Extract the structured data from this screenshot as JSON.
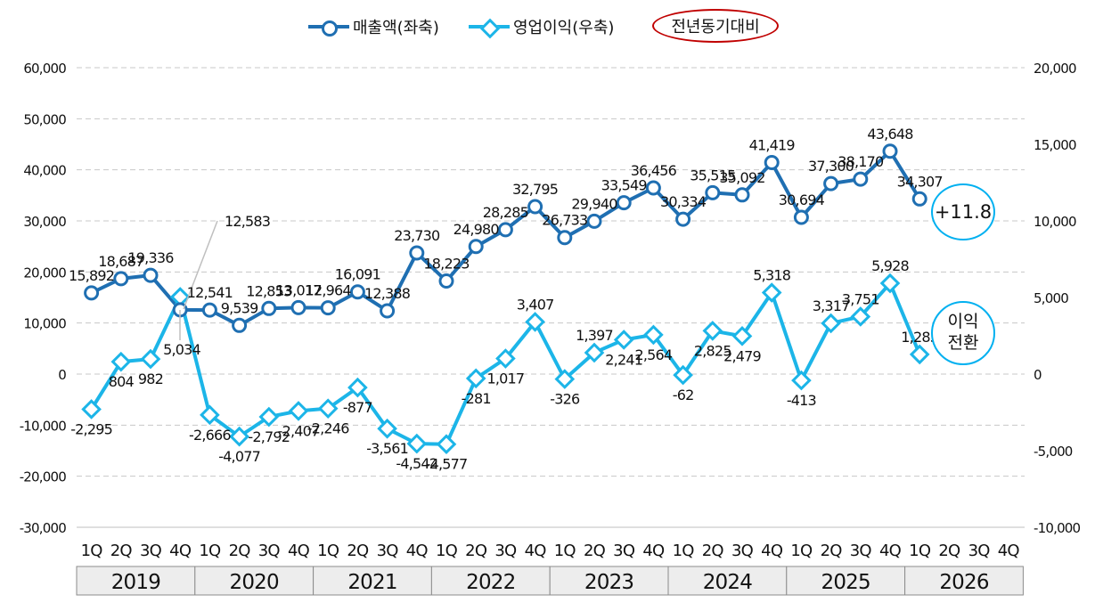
{
  "legend": {
    "sales_label": "매출액(좌축)",
    "op_label": "영업이익(우축)",
    "yoy_label": "전년동기대비"
  },
  "colors": {
    "sales": "#1f6fb2",
    "op_profit": "#1cb5e8",
    "circle_border": "#00b0f0",
    "ellipse_border": "#c00000"
  },
  "badges": {
    "sales_change": "+11.8",
    "op_change_line1": "이익",
    "op_change_line2": "전환"
  },
  "chart_data": {
    "type": "line",
    "x_quarters": [
      "1Q",
      "2Q",
      "3Q",
      "4Q",
      "1Q",
      "2Q",
      "3Q",
      "4Q",
      "1Q",
      "2Q",
      "3Q",
      "4Q",
      "1Q",
      "2Q",
      "3Q",
      "4Q",
      "1Q",
      "2Q",
      "3Q",
      "4Q",
      "1Q",
      "2Q",
      "3Q",
      "4Q",
      "1Q",
      "2Q",
      "3Q",
      "4Q",
      "1Q",
      "2Q",
      "3Q",
      "4Q"
    ],
    "years": [
      "2019",
      "2020",
      "2021",
      "2022",
      "2023",
      "2024",
      "2025",
      "2026"
    ],
    "left_axis": {
      "ticks": [
        "60,000",
        "50,000",
        "40,000",
        "30,000",
        "20,000",
        "10,000",
        "0",
        "-10,000",
        "-20,000",
        "-30,000"
      ],
      "ylim": [
        -30000,
        60000
      ]
    },
    "right_axis": {
      "ticks": [
        "20,000",
        "15,000",
        "10,000",
        "5,000",
        "0",
        "-5,000",
        "-10,000"
      ],
      "ylim": [
        -10000,
        20000
      ]
    },
    "grid": "horizontal-dashed",
    "legend_position": "top-center",
    "series": [
      {
        "name": "매출액(좌축)",
        "axis": "left",
        "marker": "circle",
        "values": [
          15892,
          18687,
          19336,
          12583,
          12541,
          9539,
          12853,
          13017,
          12964,
          16091,
          12388,
          23730,
          18223,
          24980,
          28285,
          32795,
          26733,
          29940,
          33549,
          36456,
          30334,
          35515,
          35092,
          41419,
          30694,
          37300,
          38170,
          43648,
          34307
        ],
        "labels": [
          "15,892",
          "18,687",
          "19,336",
          "12,583",
          "12,541",
          "9,539",
          "12,853",
          "13,017",
          "12,964",
          "16,091",
          "12,388",
          "23,730",
          "18,223",
          "24,980",
          "28,285",
          "32,795",
          "26,733",
          "29,940",
          "33,549",
          "36,456",
          "30,334",
          "35,515",
          "35,092",
          "41,419",
          "30,694",
          "37,300",
          "38,170",
          "43,648",
          "34,307"
        ]
      },
      {
        "name": "영업이익(우축)",
        "axis": "right",
        "marker": "diamond",
        "values": [
          -2295,
          804,
          982,
          5034,
          -2666,
          -4077,
          -2792,
          -2407,
          -2246,
          -877,
          -3561,
          -4542,
          -4577,
          -281,
          1017,
          3407,
          -326,
          1397,
          2241,
          2564,
          -62,
          2825,
          2479,
          5318,
          -413,
          3317,
          3751,
          5928,
          1285
        ],
        "labels": [
          "-2,295",
          "804",
          "982",
          "5,034",
          "-2,666",
          "-4,077",
          "-2,792",
          "-2,407",
          "-2,246",
          "-877",
          "-3,561",
          "-4,542",
          "-4,577",
          "-281",
          "1,017",
          "3,407",
          "-326",
          "1,397",
          "2,241",
          "2,564",
          "-62",
          "2,825",
          "2,479",
          "5,318",
          "-413",
          "3,317",
          "3,751",
          "5,928",
          "1,285"
        ]
      }
    ]
  }
}
